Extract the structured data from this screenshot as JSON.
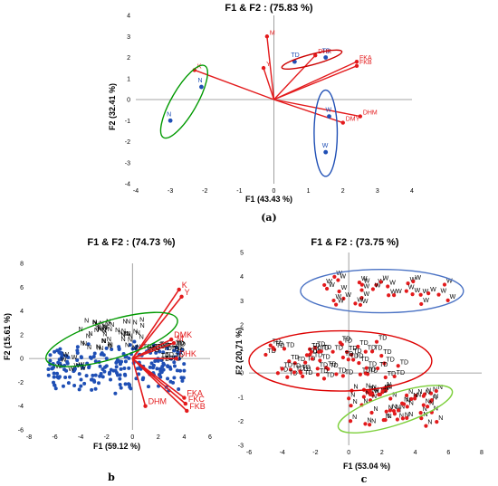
{
  "chart_data": [
    {
      "panel": "a",
      "type": "scatter",
      "caption": "(a)",
      "title": "F1 & F2 :   (75.83 %)",
      "xlabel": "F1 (43.43 %)",
      "ylabel": "F2 (32.41 %)",
      "xlim": [
        -4,
        4
      ],
      "ylim": [
        -4,
        4
      ],
      "xticks": [
        -4,
        -3,
        -2,
        -1,
        0,
        1,
        2,
        3,
        4
      ],
      "yticks": [
        -4,
        -3,
        -2,
        -1,
        0,
        1,
        2,
        3,
        4
      ],
      "grid": false,
      "variables": [
        {
          "label": "M",
          "x": -0.2,
          "y": 3.0
        },
        {
          "label": "Y",
          "x": -0.3,
          "y": 1.5
        },
        {
          "label": "K",
          "x": -2.3,
          "y": 1.4
        },
        {
          "label": "DHK",
          "x": 1.2,
          "y": 2.1
        },
        {
          "label": "FKA",
          "x": 2.4,
          "y": 1.8
        },
        {
          "label": "FKB",
          "x": 2.4,
          "y": 1.6
        },
        {
          "label": "DHM",
          "x": 2.5,
          "y": -0.8
        },
        {
          "label": "DMY",
          "x": 2.0,
          "y": -1.1
        }
      ],
      "observations": [
        {
          "label": "TD",
          "x": 0.6,
          "y": 1.8
        },
        {
          "label": "TD",
          "x": 1.5,
          "y": 2.0
        },
        {
          "label": "N",
          "x": -2.1,
          "y": 0.6
        },
        {
          "label": "N",
          "x": -3.0,
          "y": -1.0
        },
        {
          "label": "W",
          "x": 1.6,
          "y": -0.8
        },
        {
          "label": "W",
          "x": 1.5,
          "y": -2.5
        }
      ],
      "ellipses": [
        {
          "color": "#cc0000",
          "cx": 1.1,
          "cy": 1.9,
          "rx": 0.9,
          "ry": 0.25,
          "angle": 15
        },
        {
          "color": "#009900",
          "cx": -2.6,
          "cy": -0.1,
          "rx": 1.2,
          "ry": 0.6,
          "angle": 60
        },
        {
          "color": "#1f4fb5",
          "cx": 1.5,
          "cy": -1.6,
          "rx": 1.25,
          "ry": 0.55,
          "angle": 90
        }
      ]
    },
    {
      "panel": "b",
      "type": "scatter",
      "caption": "b",
      "title": "F1 & F2 :   (74.73 %)",
      "xlabel": "F1 (59.12 %)",
      "ylabel": "F2 (15.61 %)",
      "xlim": [
        -8,
        6
      ],
      "ylim": [
        -6,
        8
      ],
      "xticks": [
        -8,
        -6,
        -4,
        -2,
        0,
        2,
        4,
        6
      ],
      "yticks": [
        -6,
        -4,
        -2,
        0,
        2,
        4,
        6,
        8
      ],
      "grid": false,
      "variables": [
        {
          "label": "K",
          "x": 3.6,
          "y": 5.8
        },
        {
          "label": "Y",
          "x": 3.8,
          "y": 5.2
        },
        {
          "label": "DMK",
          "x": 3.0,
          "y": 1.6
        },
        {
          "label": "M",
          "x": 3.2,
          "y": 1.3
        },
        {
          "label": "DHK",
          "x": 3.4,
          "y": 0.0
        },
        {
          "label": "FKA",
          "x": 4.0,
          "y": -3.3
        },
        {
          "label": "FKC",
          "x": 4.1,
          "y": -3.8
        },
        {
          "label": "FKB",
          "x": 4.2,
          "y": -4.4
        },
        {
          "label": "DHM",
          "x": 1.0,
          "y": -4.0
        }
      ],
      "observation_groups": [
        {
          "label": "N",
          "x_range": [
            -4.5,
            0.5
          ],
          "y_range": [
            0.5,
            3.0
          ],
          "n": 55
        },
        {
          "label": "TD",
          "x_range": [
            0.5,
            3.5
          ],
          "y_range": [
            -0.5,
            1.0
          ],
          "n": 25
        },
        {
          "label": "W",
          "x_range": [
            -6.5,
            -4.0
          ],
          "y_range": [
            -1.5,
            0.5
          ],
          "n": 8
        }
      ],
      "point_cloud": {
        "x_range": [
          -6.5,
          4.0
        ],
        "y_range": [
          -3.0,
          1.5
        ],
        "n": 220
      },
      "ellipses": [
        {
          "color": "#009900",
          "cx": -1.6,
          "cy": 1.6,
          "rx": 5.3,
          "ry": 1.6,
          "angle": 17
        }
      ]
    },
    {
      "panel": "c",
      "type": "scatter",
      "caption": "c",
      "title": "F1 & F2 :   (73.75 %)",
      "xlabel": "F1 (53.04 %)",
      "ylabel": "F2 (20.71 %)",
      "xlim": [
        -6,
        8
      ],
      "ylim": [
        -3,
        5
      ],
      "xticks": [
        -6,
        -4,
        -2,
        0,
        2,
        4,
        6,
        8
      ],
      "yticks": [
        -3,
        -2,
        -1,
        0,
        1,
        2,
        3,
        4,
        5
      ],
      "grid": false,
      "observation_groups": [
        {
          "label": "W",
          "x_range": [
            -1.5,
            6.0
          ],
          "y_range": [
            2.8,
            4.0
          ],
          "n": 30
        },
        {
          "label": "TD",
          "x_range": [
            -5.0,
            3.0
          ],
          "y_range": [
            -0.3,
            1.3
          ],
          "n": 55
        },
        {
          "label": "N",
          "x_range": [
            0.0,
            5.5
          ],
          "y_range": [
            -2.2,
            -0.6
          ],
          "n": 55
        }
      ],
      "ellipses": [
        {
          "color": "#4a72c4",
          "cx": 2.0,
          "cy": 3.4,
          "rx": 4.9,
          "ry": 0.9,
          "angle": 0
        },
        {
          "color": "#dd0000",
          "cx": -0.5,
          "cy": 0.5,
          "rx": 5.5,
          "ry": 1.25,
          "angle": 0
        },
        {
          "color": "#7ccf3a",
          "cx": 2.8,
          "cy": -1.5,
          "rx": 3.6,
          "ry": 0.65,
          "angle": 18
        }
      ]
    }
  ],
  "colors": {
    "vector": "#e31a1c",
    "observation": "#1f4fb5",
    "obs_red": "#e31a1c",
    "axis": "#888888"
  }
}
